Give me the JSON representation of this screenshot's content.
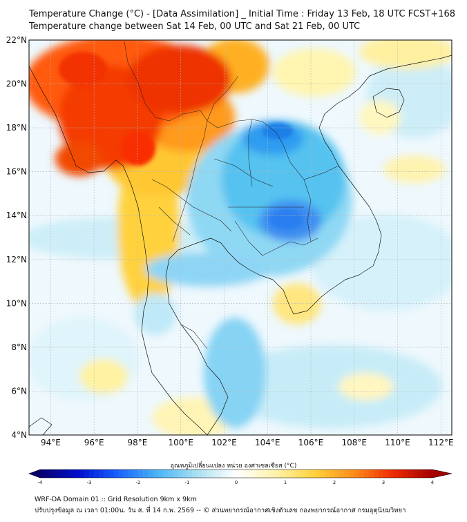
{
  "title_line1": "Temperature Change (°C) - [Data Assimilation] _ Initial Time : Friday 13 Feb, 18 UTC FCST+168",
  "title_line2": "Temperature change between Sat 14 Feb, 00 UTC and Sat 21 Feb, 00 UTC",
  "lon_labels": [
    "94°E",
    "96°E",
    "98°E",
    "100°E",
    "102°E",
    "104°E",
    "106°E",
    "108°E",
    "110°E",
    "112°E"
  ],
  "lat_labels": [
    "22°N",
    "20°N",
    "18°N",
    "16°N",
    "14°N",
    "12°N",
    "10°N",
    "8°N",
    "6°N",
    "4°N"
  ],
  "colorbar": {
    "title": "อุณหภูมิเปลี่ยนแปลง หน่วย องศาเซลเซียส (°C)",
    "ticks": [
      "-4",
      "-3",
      "-2",
      "-1",
      "0",
      "1",
      "2",
      "3",
      "4"
    ],
    "min": -4,
    "max": 4,
    "colors": [
      "#08006e",
      "#0010d0",
      "#1a63ff",
      "#4bb5f5",
      "#a9e0f2",
      "#ffffff",
      "#fff3a8",
      "#ffd23c",
      "#ff8c1a",
      "#ee2a00",
      "#a30000"
    ]
  },
  "footer_line1": "WRF-DA Domain 01 :: Grid Resolution 9km x 9km",
  "footer_line2": "ปรับปรุงข้อมูล ณ เวลา 01:00น. วัน ส. ที่ 14 ก.พ. 2569 -- © ส่วนพยากรณ์อากาศเชิงตัวเลข กองพยากรณ์อากาศ กรมอุตุนิยมวิทยา"
}
